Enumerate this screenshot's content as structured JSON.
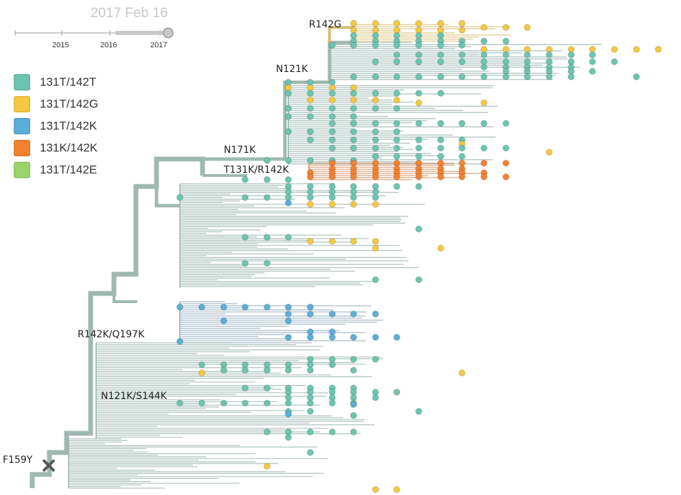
{
  "date_display": "2017 Feb 16",
  "timeline": {
    "years": [
      "2015",
      "2016",
      "2017"
    ],
    "slider_position": "end"
  },
  "legend": [
    {
      "label": "131T/142T",
      "color": "#6cc5b0"
    },
    {
      "label": "131T/142G",
      "color": "#f5c842"
    },
    {
      "label": "131T/142K",
      "color": "#5aaed8"
    },
    {
      "label": "131K/142K",
      "color": "#f58231"
    },
    {
      "label": "131T/142E",
      "color": "#9cd46b"
    }
  ],
  "mutations": {
    "r142g": "R142G",
    "n121k": "N121K",
    "n171k": "N171K",
    "t131k_r142k": "T131K/R142K",
    "r142k_q197k": "R142K/Q197K",
    "n121k_s144k": "N121K/S144K",
    "f159y": "F159Y"
  },
  "colors": {
    "branch": "#9fb8b2",
    "branch_dark": "#94b0a8",
    "clade_teal": "#6cc5b0",
    "clade_yellow": "#f5c842",
    "clade_blue": "#5aaed8",
    "clade_orange": "#f58231",
    "clade_green": "#9cd46b",
    "root_marker": "#555555"
  }
}
